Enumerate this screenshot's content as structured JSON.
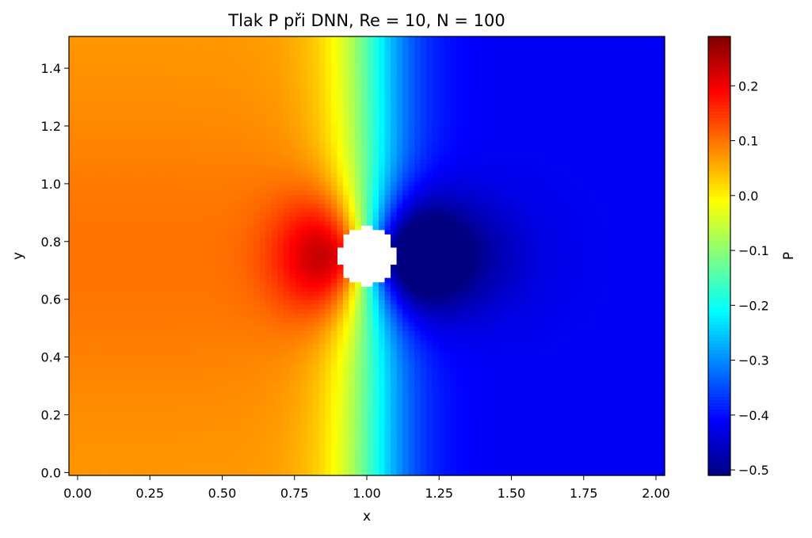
{
  "chart_data": {
    "type": "heatmap",
    "title": "Tlak P při DNN, Re = 10, N = 100",
    "xlabel": "x",
    "ylabel": "y",
    "colorbar_label": "P",
    "colormap": "jet",
    "xlim": [
      -0.03,
      2.03
    ],
    "ylim": [
      -0.01,
      1.51
    ],
    "x_ticks": [
      0.0,
      0.25,
      0.5,
      0.75,
      1.0,
      1.25,
      1.5,
      1.75,
      2.0
    ],
    "x_tick_labels": [
      "0.00",
      "0.25",
      "0.50",
      "0.75",
      "1.00",
      "1.25",
      "1.50",
      "1.75",
      "2.00"
    ],
    "y_ticks": [
      0.0,
      0.2,
      0.4,
      0.6,
      0.8,
      1.0,
      1.2,
      1.4
    ],
    "y_tick_labels": [
      "0.0",
      "0.2",
      "0.4",
      "0.6",
      "0.8",
      "1.0",
      "1.2",
      "1.4"
    ],
    "colorbar_range": [
      -0.51,
      0.29
    ],
    "colorbar_ticks": [
      -0.5,
      -0.4,
      -0.3,
      -0.2,
      -0.1,
      0.0,
      0.1,
      0.2
    ],
    "colorbar_tick_labels": [
      "−0.5",
      "−0.4",
      "−0.3",
      "−0.2",
      "−0.1",
      "0.0",
      "0.1",
      "0.2"
    ],
    "obstacle": {
      "shape": "circle",
      "center": [
        1.0,
        0.75
      ],
      "radius": 0.1
    },
    "field_summary": {
      "p_max": 0.29,
      "p_max_location": [
        0.86,
        0.75
      ],
      "p_min": -0.51,
      "p_min_location": [
        1.3,
        0.75
      ],
      "p_inlet": 0.07,
      "p_outlet": -0.42
    }
  }
}
